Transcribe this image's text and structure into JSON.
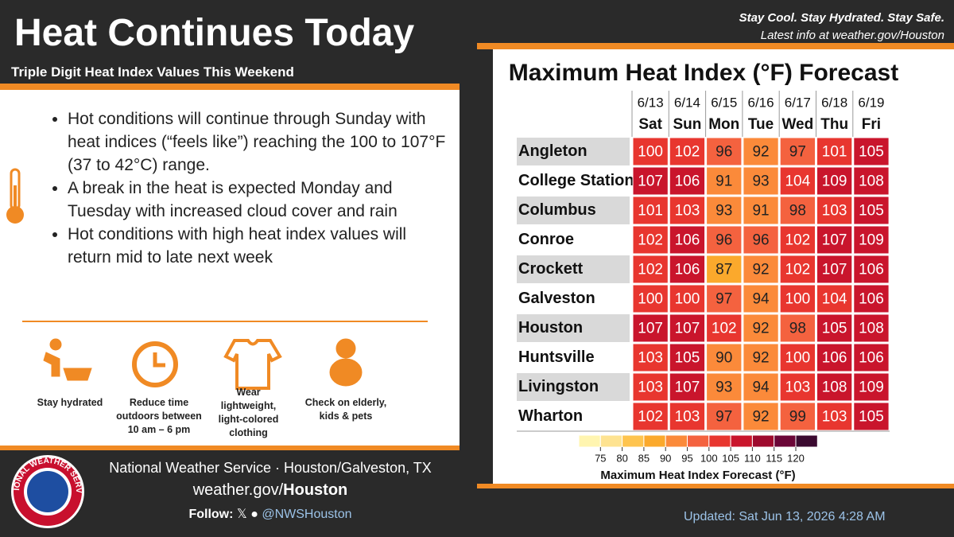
{
  "header": {
    "title": "Heat Continues Today",
    "subtitle": "Triple Digit Heat Index Values This Weekend",
    "tagline": "Stay Cool. Stay Hydrated. Stay Safe.",
    "latest": "Latest info at weather.gov/Houston"
  },
  "bullets": [
    "Hot conditions will continue through Sunday with heat indices (“feels like”) reaching the 100 to 107°F (37 to 42°C) range.",
    "A break in the heat is expected Monday and Tuesday with increased cloud cover and rain",
    "Hot conditions with high heat index values will return mid to late next week"
  ],
  "tips": [
    "Stay hydrated",
    "Reduce time outdoors between 10 am – 6 pm",
    "Wear lightweight, light-colored clothing",
    "Check on elderly, kids & pets"
  ],
  "table": {
    "title": "Maximum Heat Index (°F) Forecast",
    "dates": [
      "6/13",
      "6/14",
      "6/15",
      "6/16",
      "6/17",
      "6/18",
      "6/19"
    ],
    "days": [
      "Sat",
      "Sun",
      "Mon",
      "Tue",
      "Wed",
      "Thu",
      "Fri"
    ],
    "rows": [
      {
        "city": "Angleton",
        "values": [
          100,
          102,
          96,
          92,
          97,
          101,
          105
        ]
      },
      {
        "city": "College Station",
        "values": [
          107,
          106,
          91,
          93,
          104,
          109,
          108
        ]
      },
      {
        "city": "Columbus",
        "values": [
          101,
          103,
          93,
          91,
          98,
          103,
          105
        ]
      },
      {
        "city": "Conroe",
        "values": [
          102,
          106,
          96,
          96,
          102,
          107,
          109
        ]
      },
      {
        "city": "Crockett",
        "values": [
          102,
          106,
          87,
          92,
          102,
          107,
          106
        ]
      },
      {
        "city": "Galveston",
        "values": [
          100,
          100,
          97,
          94,
          100,
          104,
          106
        ]
      },
      {
        "city": "Houston",
        "values": [
          107,
          107,
          102,
          92,
          98,
          105,
          108
        ]
      },
      {
        "city": "Huntsville",
        "values": [
          103,
          105,
          90,
          92,
          100,
          106,
          106
        ]
      },
      {
        "city": "Livingston",
        "values": [
          103,
          107,
          93,
          94,
          103,
          108,
          109
        ]
      },
      {
        "city": "Wharton",
        "values": [
          102,
          103,
          97,
          92,
          99,
          103,
          105
        ]
      }
    ]
  },
  "legend": {
    "title": "Maximum Heat Index Forecast (°F)",
    "ticks": [
      75,
      80,
      85,
      90,
      95,
      100,
      105,
      110,
      115,
      120
    ],
    "colors": [
      "#fff5b0",
      "#fee391",
      "#fec44f",
      "#fba92c",
      "#fb8a3a",
      "#f4623f",
      "#e8362f",
      "#c9152c",
      "#9e0a2e",
      "#6b0638",
      "#3b0a30"
    ]
  },
  "footer": {
    "office": "National Weather Service · Houston/Galveston, TX",
    "web_plain": "weather.gov/",
    "web_bold": "Houston",
    "follow": "Follow:",
    "handle": "@NWSHouston",
    "updated": "Updated: Sat Jun 13, 2026 4:28 AM",
    "logo_text": "NATIONAL WEATHER SERVICE"
  }
}
